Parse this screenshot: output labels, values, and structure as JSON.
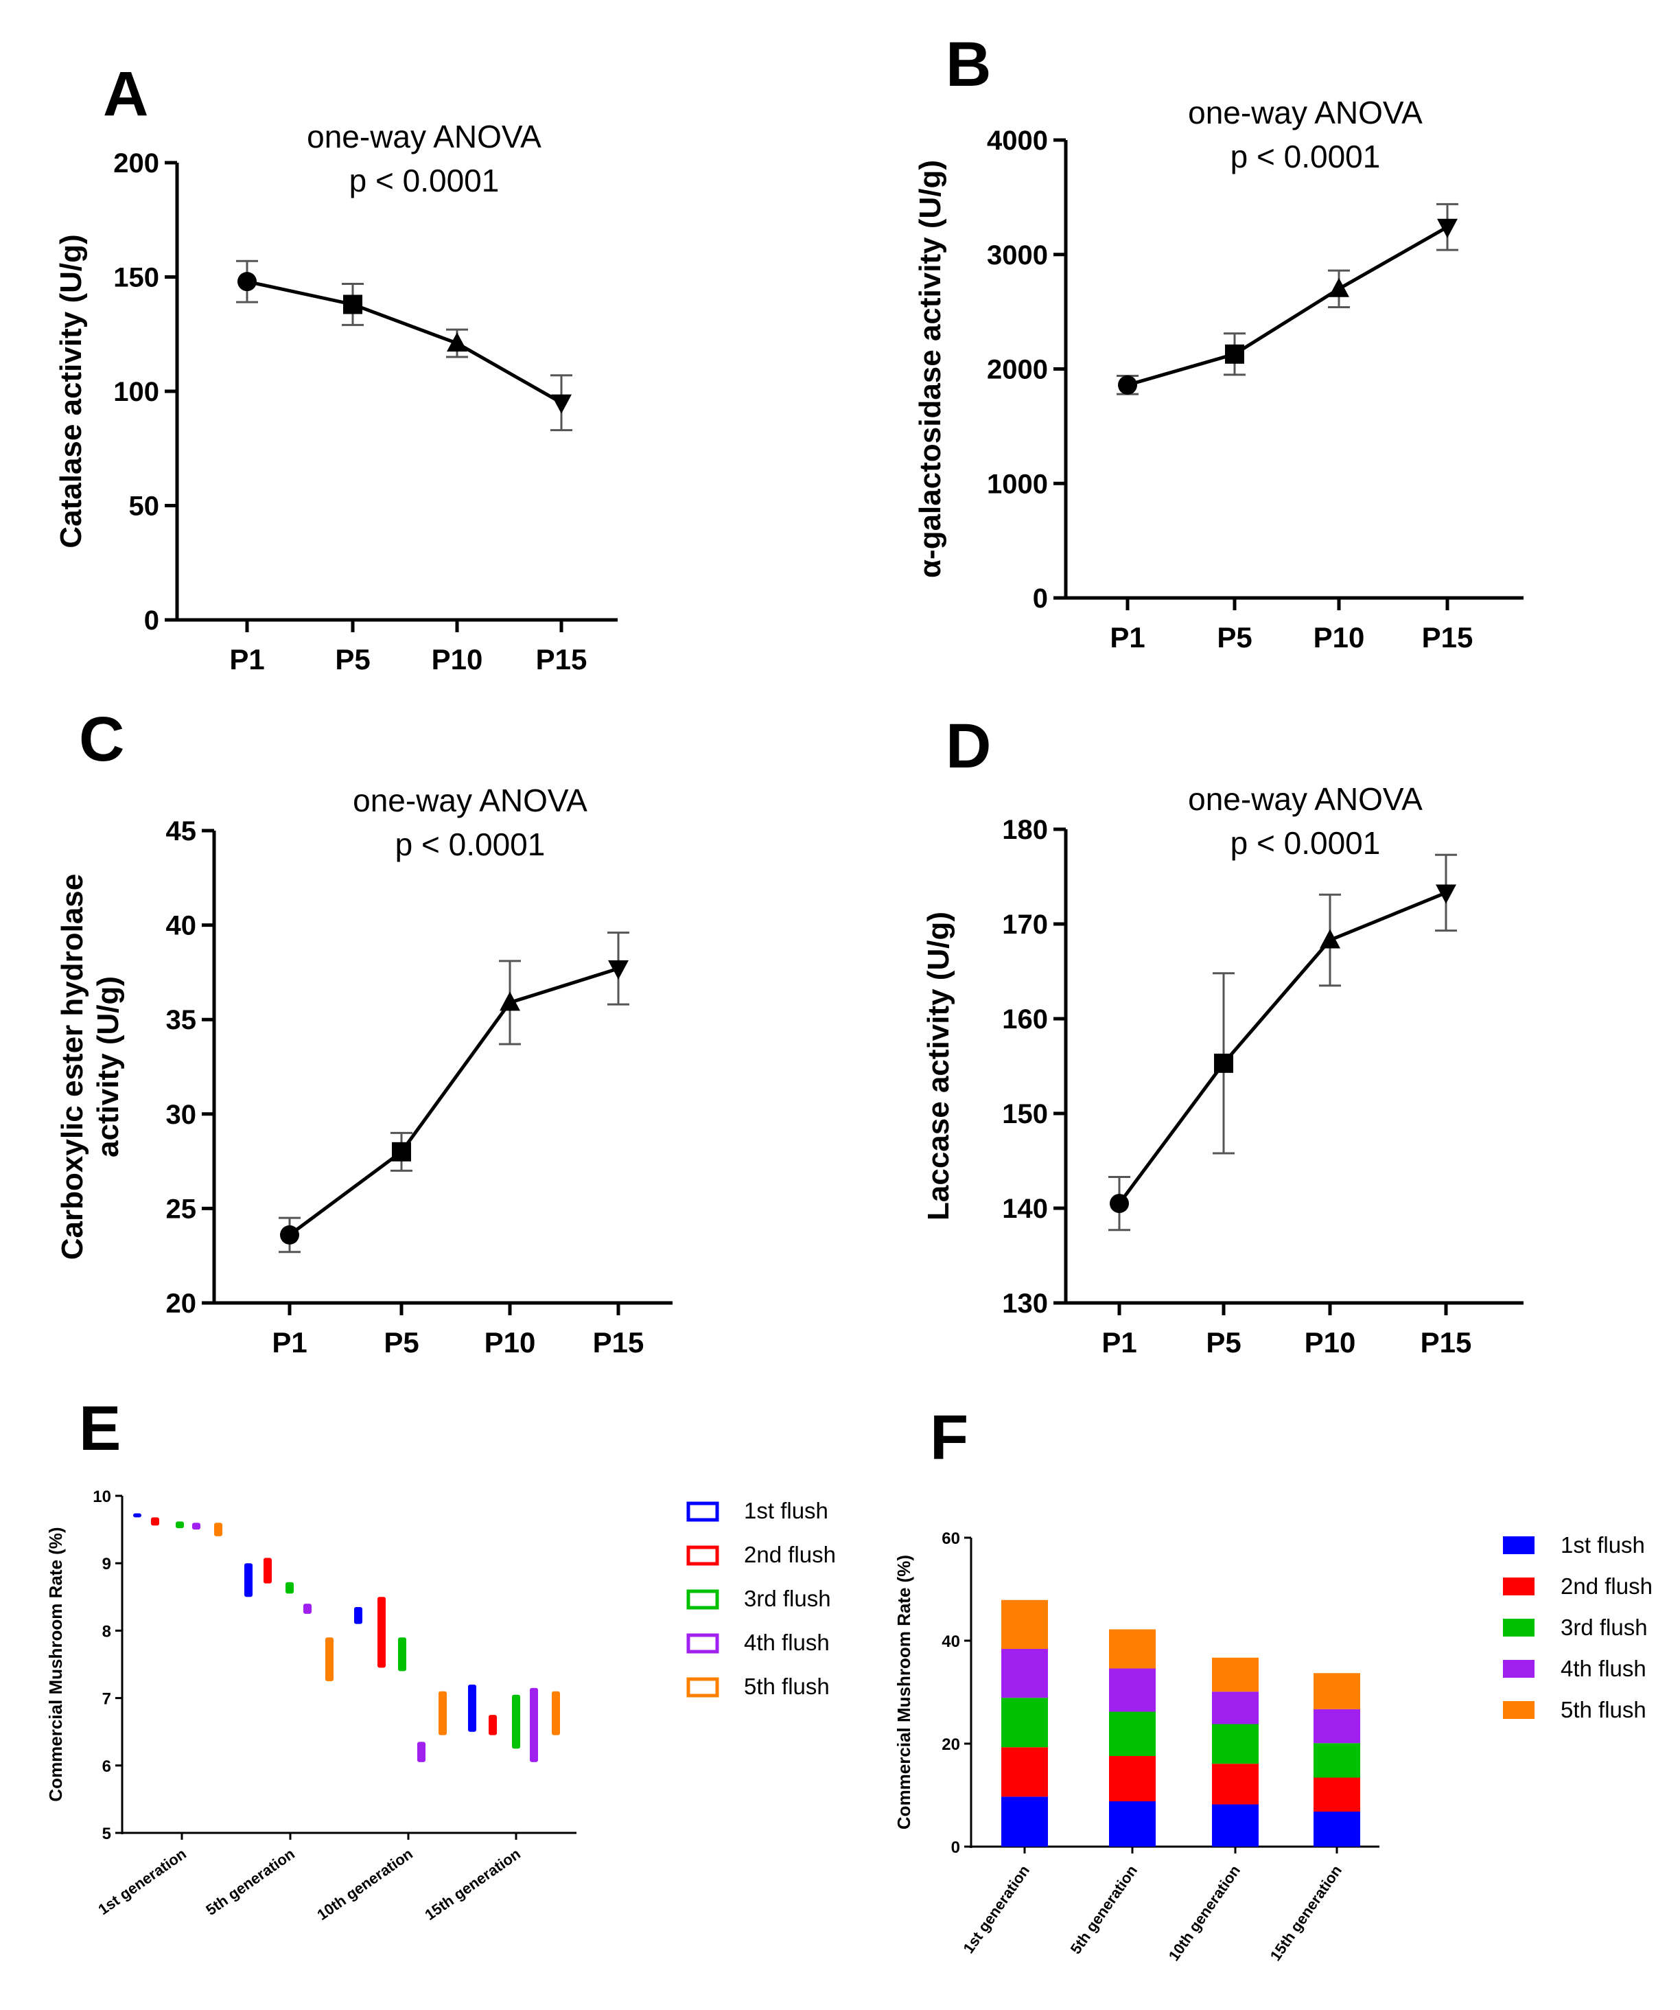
{
  "chart_data": [
    {
      "panel": "A",
      "type": "line",
      "title": "one-way ANOVA",
      "subtitle": "p < 0.0001",
      "xlabel": "",
      "ylabel": "Catalase activity (U/g)",
      "categories": [
        "P1",
        "P5",
        "P10",
        "P15"
      ],
      "values": [
        148,
        138,
        121,
        95
      ],
      "errors": [
        9,
        9,
        6,
        12
      ],
      "markers": [
        "circle",
        "square",
        "triangle-up",
        "triangle-down"
      ],
      "ylim": [
        0,
        200
      ],
      "yticks": [
        0,
        50,
        100,
        150,
        200
      ]
    },
    {
      "panel": "B",
      "type": "line",
      "title": "one-way ANOVA",
      "subtitle": "p < 0.0001",
      "xlabel": "",
      "ylabel": "α-galactosidase activity (U/g)",
      "categories": [
        "P1",
        "P5",
        "P10",
        "P15"
      ],
      "values": [
        1860,
        2130,
        2700,
        3240
      ],
      "errors": [
        80,
        180,
        160,
        200
      ],
      "markers": [
        "circle",
        "square",
        "triangle-up",
        "triangle-down"
      ],
      "ylim": [
        0,
        4000
      ],
      "yticks": [
        0,
        1000,
        2000,
        3000,
        4000
      ]
    },
    {
      "panel": "C",
      "type": "line",
      "title": "one-way ANOVA",
      "subtitle": "p < 0.0001",
      "xlabel": "",
      "ylabel_lines": [
        "Carboxylic ester hydrolase",
        "activity (U/g)"
      ],
      "categories": [
        "P1",
        "P5",
        "P10",
        "P15"
      ],
      "values": [
        23.6,
        28.0,
        35.9,
        37.7
      ],
      "errors": [
        0.9,
        1.0,
        2.2,
        1.9
      ],
      "markers": [
        "circle",
        "square",
        "triangle-up",
        "triangle-down"
      ],
      "ylim": [
        20,
        45
      ],
      "yticks": [
        20,
        25,
        30,
        35,
        40,
        45
      ]
    },
    {
      "panel": "D",
      "type": "line",
      "title": "one-way ANOVA",
      "subtitle": "p < 0.0001",
      "xlabel": "",
      "ylabel": "Laccase activity (U/g)",
      "categories": [
        "P1",
        "P5",
        "P10",
        "P15"
      ],
      "values": [
        140.5,
        155.3,
        168.3,
        173.3
      ],
      "errors": [
        2.8,
        9.5,
        4.8,
        4.0
      ],
      "markers": [
        "circle",
        "square",
        "triangle-up",
        "triangle-down"
      ],
      "ylim": [
        130,
        180
      ],
      "yticks": [
        130,
        140,
        150,
        160,
        170,
        180
      ]
    },
    {
      "panel": "E",
      "type": "floating-bar",
      "xlabel": "",
      "ylabel": "Commercial Mushroom Rate (%)",
      "categories": [
        "1st generation",
        "5th generation",
        "10th generation",
        "15th generation"
      ],
      "ylim": [
        5,
        10
      ],
      "yticks": [
        5,
        6,
        7,
        8,
        9,
        10
      ],
      "series": [
        {
          "name": "1st flush",
          "color": "#0000ff",
          "ranges": [
            [
              9.68,
              9.74
            ],
            [
              8.5,
              9.0
            ],
            [
              8.1,
              8.35
            ],
            [
              6.5,
              7.2
            ]
          ]
        },
        {
          "name": "2nd flush",
          "color": "#ff0000",
          "ranges": [
            [
              9.56,
              9.68
            ],
            [
              8.7,
              9.08
            ],
            [
              7.45,
              8.5
            ],
            [
              6.45,
              6.75
            ]
          ]
        },
        {
          "name": "3rd flush",
          "color": "#00c000",
          "ranges": [
            [
              9.52,
              9.62
            ],
            [
              8.55,
              8.72
            ],
            [
              7.4,
              7.9
            ],
            [
              6.25,
              7.05
            ]
          ]
        },
        {
          "name": "4th flush",
          "color": "#a020f0",
          "ranges": [
            [
              9.5,
              9.6
            ],
            [
              8.25,
              8.4
            ],
            [
              6.05,
              6.35
            ],
            [
              6.05,
              7.15
            ]
          ]
        },
        {
          "name": "5th flush",
          "color": "#ff8000",
          "ranges": [
            [
              9.4,
              9.6
            ],
            [
              7.25,
              7.9
            ],
            [
              6.45,
              7.1
            ],
            [
              6.45,
              7.1
            ]
          ]
        }
      ]
    },
    {
      "panel": "F",
      "type": "bar",
      "stacked": true,
      "xlabel": "",
      "ylabel": "Commercial Mushroom Rate (%)",
      "categories": [
        "1st generation",
        "5th generation",
        "10th generation",
        "15th generation"
      ],
      "ylim": [
        0,
        60
      ],
      "yticks": [
        0,
        20,
        40,
        60
      ],
      "series": [
        {
          "name": "1st flush",
          "color": "#0000ff",
          "values": [
            9.7,
            8.8,
            8.2,
            6.8
          ]
        },
        {
          "name": "2nd flush",
          "color": "#ff0000",
          "values": [
            9.6,
            8.8,
            7.9,
            6.6
          ]
        },
        {
          "name": "3rd flush",
          "color": "#00c000",
          "values": [
            9.6,
            8.6,
            7.7,
            6.7
          ]
        },
        {
          "name": "4th flush",
          "color": "#a020f0",
          "values": [
            9.5,
            8.4,
            6.3,
            6.6
          ]
        },
        {
          "name": "5th flush",
          "color": "#ff8000",
          "values": [
            9.5,
            7.6,
            6.6,
            7.0
          ]
        }
      ]
    }
  ]
}
